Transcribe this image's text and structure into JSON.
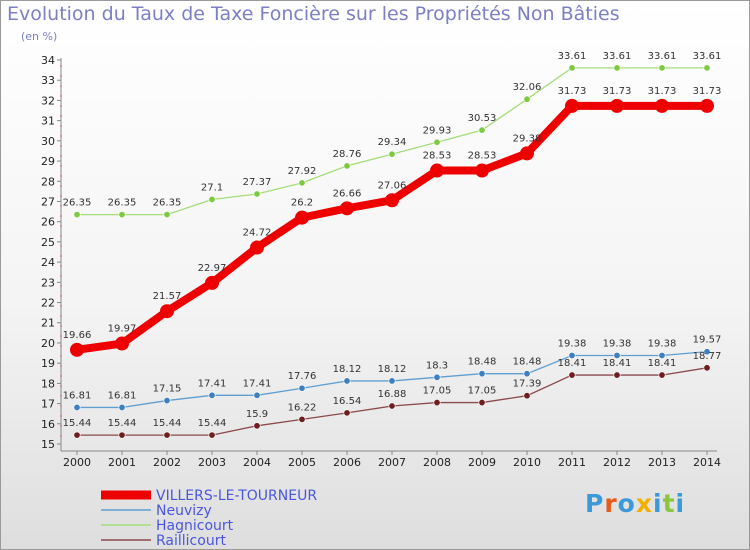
{
  "page": {
    "title": "Evolution du Taux de Taxe Foncière sur les Propriétés Non Bâties",
    "unit": "(en %)",
    "logo_text": "Proxiti",
    "logo_colors": [
      "#3a9ad9",
      "#e8591a",
      "#3a9ad9",
      "#f0b000",
      "#3a9ad9",
      "#8cc63f",
      "#3a9ad9"
    ]
  },
  "chart_data": {
    "type": "line",
    "title": "Evolution du Taux de Taxe Foncière sur les Propriétés Non Bâties",
    "ylabel": "(en %)",
    "xlabel": "",
    "x": [
      "2000",
      "2001",
      "2002",
      "2003",
      "2004",
      "2005",
      "2006",
      "2007",
      "2008",
      "2009",
      "2010",
      "2011",
      "2012",
      "2013",
      "2014"
    ],
    "ylim": [
      15,
      34
    ],
    "yticks": [
      15,
      16,
      17,
      18,
      19,
      20,
      21,
      22,
      23,
      24,
      25,
      26,
      27,
      28,
      29,
      30,
      31,
      32,
      33,
      34
    ],
    "grid": false,
    "legend_position": "bottom-left",
    "series": [
      {
        "name": "VILLERS-LE-TOURNEUR",
        "color": "#ee0000",
        "emphasis": true,
        "values": [
          19.66,
          19.97,
          21.57,
          22.97,
          24.72,
          26.2,
          26.66,
          27.06,
          28.53,
          28.53,
          29.38,
          31.73,
          31.73,
          31.73,
          31.73
        ],
        "labels": [
          "19.66",
          "19.97",
          "21.57",
          "22.97",
          "24.72",
          "26.2",
          "26.66",
          "27.06",
          "28.53",
          "28.53",
          "29.38",
          "31.73",
          "31.73",
          "31.73",
          "31.73"
        ]
      },
      {
        "name": "Neuvizy",
        "color": "#5f9ed1",
        "marker": "#3d7fc0",
        "values": [
          16.81,
          16.81,
          17.15,
          17.41,
          17.41,
          17.76,
          18.12,
          18.12,
          18.3,
          18.48,
          18.48,
          19.38,
          19.38,
          19.38,
          19.57
        ],
        "labels": [
          "16.81",
          "16.81",
          "17.15",
          "17.41",
          "17.41",
          "17.76",
          "18.12",
          "18.12",
          "18.3",
          "18.48",
          "18.48",
          "19.38",
          "19.38",
          "19.38",
          "19.57"
        ]
      },
      {
        "name": "Hagnicourt",
        "color": "#a4dd7a",
        "marker": "#7dc93f",
        "values": [
          26.35,
          26.35,
          26.35,
          27.1,
          27.37,
          27.92,
          28.76,
          29.34,
          29.93,
          30.53,
          32.06,
          33.61,
          33.61,
          33.61,
          33.61
        ],
        "labels": [
          "26.35",
          "26.35",
          "26.35",
          "27.1",
          "27.37",
          "27.92",
          "28.76",
          "29.34",
          "29.93",
          "30.53",
          "32.06",
          "33.61",
          "33.61",
          "33.61",
          "33.61"
        ]
      },
      {
        "name": "Raillicourt",
        "color": "#8b4a4a",
        "marker": "#6e1e1e",
        "values": [
          15.44,
          15.44,
          15.44,
          15.44,
          15.9,
          16.22,
          16.54,
          16.88,
          17.05,
          17.05,
          17.39,
          18.41,
          18.41,
          18.41,
          18.77
        ],
        "labels": [
          "15.44",
          "15.44",
          "15.44",
          "15.44",
          "15.9",
          "16.22",
          "16.54",
          "16.88",
          "17.05",
          "17.05",
          "17.39",
          "18.41",
          "18.41",
          "18.41",
          "18.77"
        ]
      }
    ]
  }
}
